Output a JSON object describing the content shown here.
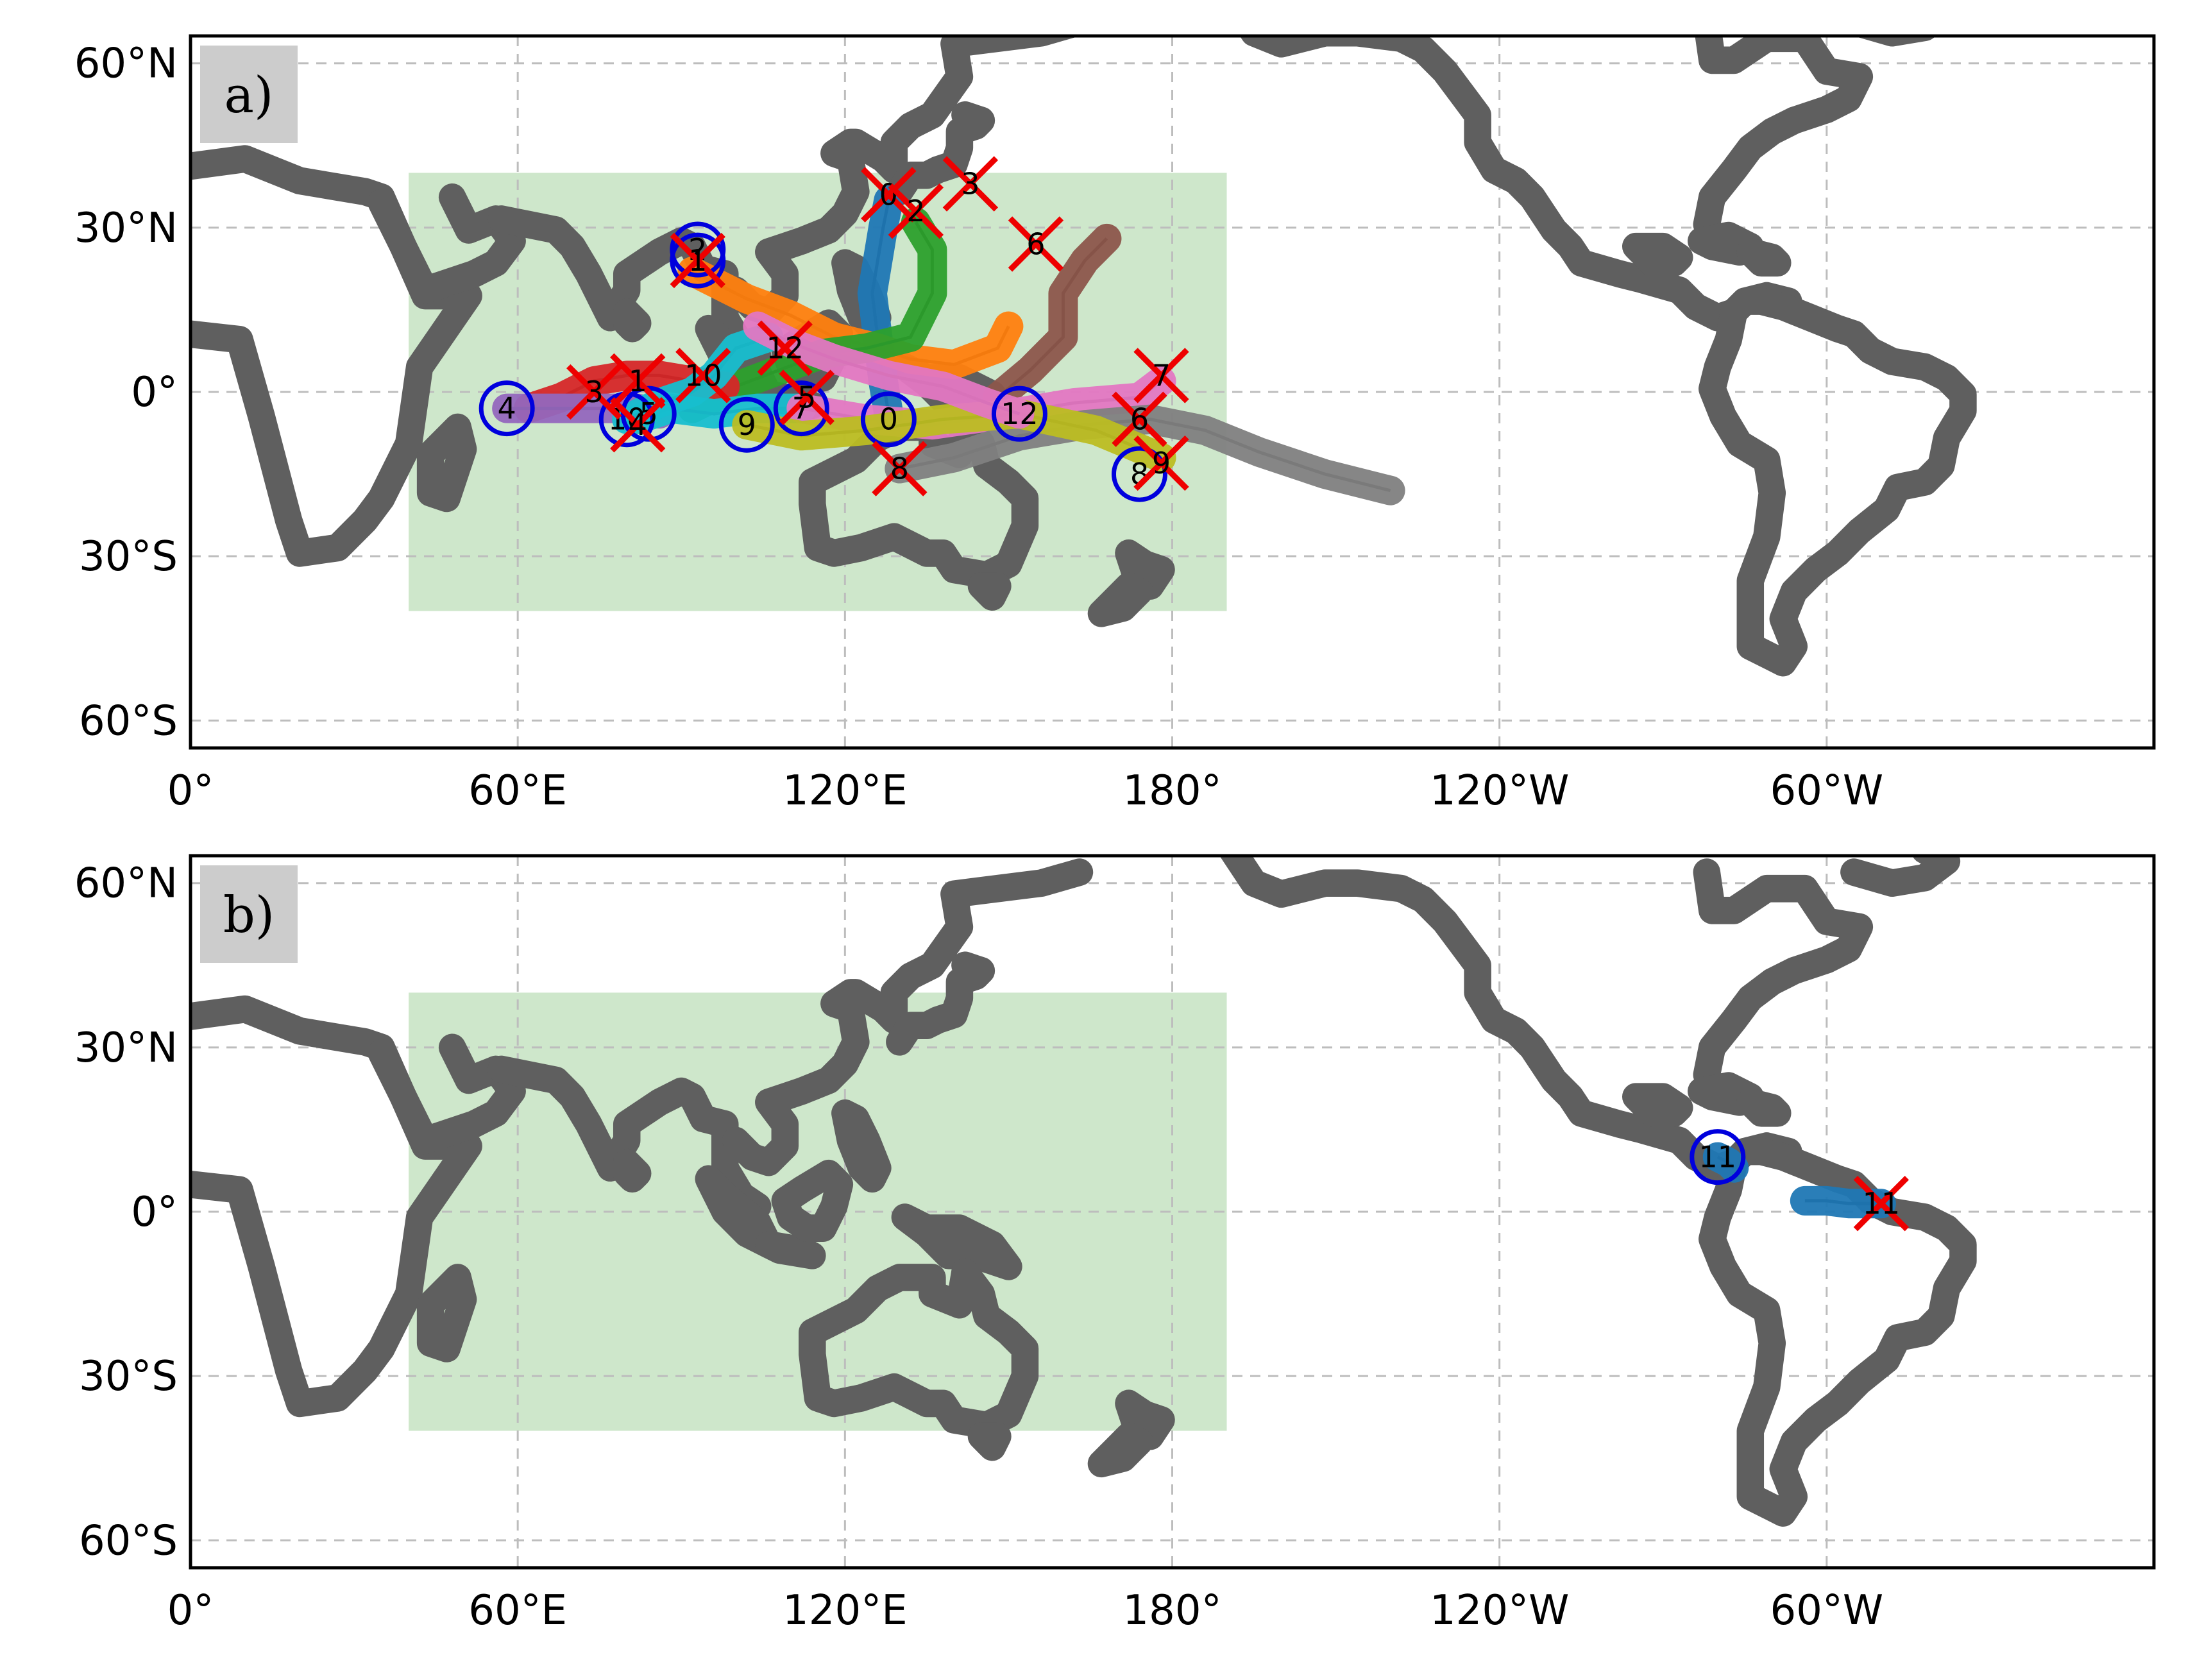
{
  "chart_data": [
    {
      "type": "map",
      "panel_label": "a)",
      "lon_range": [
        0,
        360
      ],
      "lat_range": [
        -65,
        65
      ],
      "grid": true,
      "xticks": [
        {
          "lon": 0,
          "label": "0°"
        },
        {
          "lon": 60,
          "label": "60°E"
        },
        {
          "lon": 120,
          "label": "120°E"
        },
        {
          "lon": 180,
          "label": "180°"
        },
        {
          "lon": 240,
          "label": "120°W"
        },
        {
          "lon": 300,
          "label": "60°W"
        }
      ],
      "yticks": [
        {
          "lat": 60,
          "label": "60°N"
        },
        {
          "lat": 30,
          "label": "30°N"
        },
        {
          "lat": 0,
          "label": "0°"
        },
        {
          "lat": -30,
          "label": "30°S"
        },
        {
          "lat": -60,
          "label": "60°S"
        }
      ],
      "region": {
        "lon": [
          40,
          190
        ],
        "lat": [
          -40,
          40
        ],
        "color": "#a5d3a0"
      },
      "tracks": [
        {
          "id": "0",
          "color": "#1f77b4",
          "points": [
            [
              128,
              -4
            ],
            [
              127,
              2
            ],
            [
              126,
              10
            ],
            [
              125,
              18
            ],
            [
              126,
              24
            ],
            [
              127,
              30
            ],
            [
              128,
              35
            ]
          ]
        },
        {
          "id": "1",
          "color": "#ff7f0e",
          "points": [
            [
              92,
              22
            ],
            [
              96,
              20
            ],
            [
              102,
              17
            ],
            [
              110,
              14
            ],
            [
              118,
              10
            ],
            [
              126,
              8
            ],
            [
              132,
              6
            ],
            [
              140,
              5
            ],
            [
              148,
              8
            ],
            [
              150,
              12
            ]
          ]
        },
        {
          "id": "2",
          "color": "#2ca02c",
          "points": [
            [
              92,
              -3
            ],
            [
              100,
              1
            ],
            [
              108,
              4
            ],
            [
              116,
              7
            ],
            [
              124,
              8
            ],
            [
              132,
              10
            ],
            [
              136,
              18
            ],
            [
              136,
              26
            ],
            [
              133,
              31
            ]
          ]
        },
        {
          "id": "3",
          "color": "#d62728",
          "points": [
            [
              62,
              -3
            ],
            [
              68,
              -1
            ],
            [
              74,
              2
            ],
            [
              80,
              3
            ],
            [
              86,
              3
            ],
            [
              92,
              2
            ],
            [
              98,
              1
            ]
          ]
        },
        {
          "id": "4",
          "color": "#9467bd",
          "points": [
            [
              58,
              -3
            ],
            [
              66,
              -3
            ],
            [
              74,
              -3
            ],
            [
              82,
              -3
            ],
            [
              86,
              -4
            ]
          ]
        },
        {
          "id": "5",
          "color": "#17becf",
          "points": [
            [
              82,
              -5
            ],
            [
              88,
              -3
            ],
            [
              96,
              -4
            ],
            [
              104,
              -3
            ],
            [
              112,
              -3
            ]
          ]
        },
        {
          "id": "6",
          "color": "#8c564b",
          "points": [
            [
              148,
              -1
            ],
            [
              154,
              4
            ],
            [
              160,
              10
            ],
            [
              160,
              18
            ],
            [
              164,
              24
            ],
            [
              168,
              28
            ]
          ]
        },
        {
          "id": "7",
          "color": "#e377c2",
          "points": [
            [
              112,
              -3
            ],
            [
              124,
              -5
            ],
            [
              136,
              -6
            ],
            [
              150,
              -4
            ],
            [
              162,
              -2
            ],
            [
              174,
              -1
            ],
            [
              178,
              2
            ]
          ]
        },
        {
          "id": "8",
          "color": "#7f7f7f",
          "points": [
            [
              130,
              -14
            ],
            [
              140,
              -12
            ],
            [
              152,
              -8
            ],
            [
              164,
              -6
            ],
            [
              176,
              -5
            ],
            [
              186,
              -7
            ],
            [
              196,
              -11
            ],
            [
              208,
              -15
            ],
            [
              220,
              -18
            ]
          ]
        },
        {
          "id": "9",
          "color": "#bcbd22",
          "points": [
            [
              102,
              -6
            ],
            [
              112,
              -8
            ],
            [
              124,
              -7
            ],
            [
              138,
              -5
            ],
            [
              152,
              -4
            ],
            [
              166,
              -7
            ],
            [
              178,
              -12
            ]
          ]
        },
        {
          "id": "10",
          "color": "#17becf",
          "points": [
            [
              80,
              -5
            ],
            [
              86,
              -2
            ],
            [
              92,
              0
            ],
            [
              96,
              3
            ],
            [
              100,
              8
            ],
            [
              106,
              10
            ]
          ]
        },
        {
          "id": "12",
          "color": "#e377c2",
          "points": [
            [
              152,
              -4
            ],
            [
              146,
              -2
            ],
            [
              138,
              1
            ],
            [
              128,
              3
            ],
            [
              118,
              6
            ],
            [
              110,
              9
            ],
            [
              104,
              12
            ]
          ]
        }
      ],
      "start_markers": [
        {
          "label": "2",
          "lon": 93,
          "lat": 26
        },
        {
          "label": "1",
          "lon": 93,
          "lat": 24
        },
        {
          "label": "4",
          "lon": 58,
          "lat": -3
        },
        {
          "label": "10",
          "lon": 80,
          "lat": -5
        },
        {
          "label": "5",
          "lon": 84,
          "lat": -4
        },
        {
          "label": "9",
          "lon": 102,
          "lat": -6
        },
        {
          "label": "7",
          "lon": 112,
          "lat": -3
        },
        {
          "label": "0",
          "lon": 128,
          "lat": -5
        },
        {
          "label": "12",
          "lon": 152,
          "lat": -4
        },
        {
          "label": "8",
          "lon": 174,
          "lat": -15
        }
      ],
      "end_markers": [
        {
          "label": "0",
          "lon": 128,
          "lat": 36
        },
        {
          "label": "2",
          "lon": 133,
          "lat": 33
        },
        {
          "label": "3",
          "lon": 143,
          "lat": 38
        },
        {
          "label": "6",
          "lon": 155,
          "lat": 27
        },
        {
          "label": "1",
          "lon": 93,
          "lat": 24
        },
        {
          "label": "12",
          "lon": 109,
          "lat": 8
        },
        {
          "label": "10",
          "lon": 94,
          "lat": 3
        },
        {
          "label": "3",
          "lon": 74,
          "lat": 0
        },
        {
          "label": "1",
          "lon": 82,
          "lat": 2
        },
        {
          "label": "4",
          "lon": 82,
          "lat": -6
        },
        {
          "label": "5",
          "lon": 113,
          "lat": -1
        },
        {
          "label": "7",
          "lon": 178,
          "lat": 3
        },
        {
          "label": "6",
          "lon": 174,
          "lat": -5
        },
        {
          "label": "9",
          "lon": 178,
          "lat": -13
        },
        {
          "label": "8",
          "lon": 130,
          "lat": -14
        }
      ]
    },
    {
      "type": "map",
      "panel_label": "b)",
      "lon_range": [
        0,
        360
      ],
      "lat_range": [
        -65,
        65
      ],
      "grid": true,
      "xticks": [
        {
          "lon": 0,
          "label": "0°"
        },
        {
          "lon": 60,
          "label": "60°E"
        },
        {
          "lon": 120,
          "label": "120°E"
        },
        {
          "lon": 180,
          "label": "180°"
        },
        {
          "lon": 240,
          "label": "120°W"
        },
        {
          "lon": 300,
          "label": "60°W"
        }
      ],
      "yticks": [
        {
          "lat": 60,
          "label": "60°N"
        },
        {
          "lat": 30,
          "label": "30°N"
        },
        {
          "lat": 0,
          "label": "0°"
        },
        {
          "lat": -30,
          "label": "30°S"
        },
        {
          "lat": -60,
          "label": "60°S"
        }
      ],
      "region": {
        "lon": [
          40,
          190
        ],
        "lat": [
          -40,
          40
        ],
        "color": "#a5d3a0"
      },
      "tracks": [
        {
          "id": "11",
          "color": "#1f77b4",
          "points": [
            [
              280,
              10
            ],
            [
              282,
              9
            ],
            [
              283,
              8
            ]
          ]
        },
        {
          "id": "11",
          "color": "#1f77b4",
          "points": [
            [
              296,
              2
            ],
            [
              300,
              2
            ],
            [
              304,
              1.5
            ],
            [
              308,
              1.5
            ],
            [
              310,
              1.5
            ]
          ]
        }
      ],
      "start_markers": [
        {
          "label": "11",
          "lon": 280,
          "lat": 10
        }
      ],
      "end_markers": [
        {
          "label": "11",
          "lon": 310,
          "lat": 1.5
        }
      ]
    }
  ],
  "colors": {
    "coastline": "#5f5f5f",
    "start_circle": "#0000dd",
    "end_cross": "#ee0000",
    "panel_label_bg": "#cccccc"
  }
}
